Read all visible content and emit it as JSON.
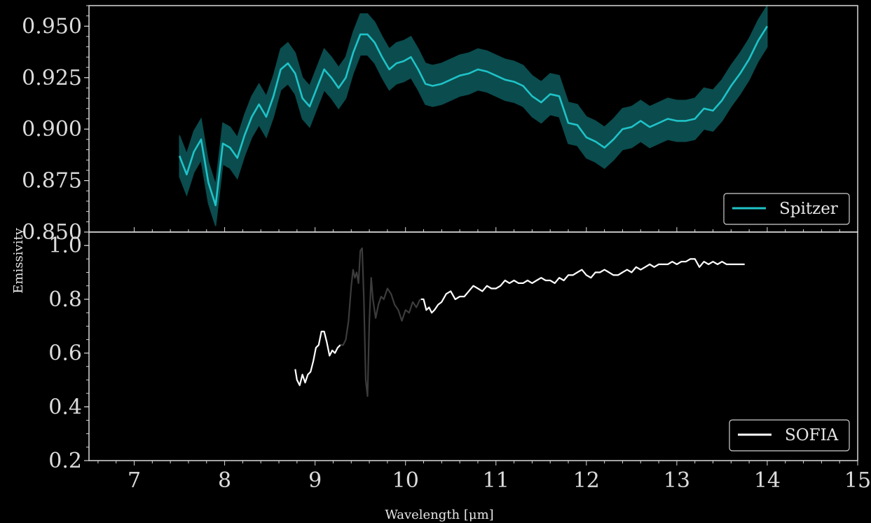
{
  "colors": {
    "background": "#000000",
    "axes": "#d9d9d9",
    "spitzer_line": "#1fc3c8",
    "spitzer_band": "#0d5a5c",
    "sofia_line": "#ffffff",
    "sofia_faded": "#3c3c3c"
  },
  "chart_data": [
    {
      "type": "line",
      "panel": "top",
      "legend": {
        "labels": [
          "Spitzer"
        ],
        "placement": "lower right"
      },
      "xlim": [
        6.5,
        15
      ],
      "ylim": [
        0.85,
        0.96
      ],
      "yticks": [
        0.85,
        0.875,
        0.9,
        0.925,
        0.95
      ],
      "ytick_labels": [
        "0.850",
        "0.875",
        "0.900",
        "0.925",
        "0.950"
      ],
      "series": [
        {
          "name": "Spitzer",
          "uncertainty_band": 0.01,
          "x": [
            7.5,
            7.58,
            7.66,
            7.74,
            7.82,
            7.9,
            7.98,
            8.06,
            8.14,
            8.22,
            8.3,
            8.38,
            8.46,
            8.54,
            8.62,
            8.7,
            8.78,
            8.86,
            8.94,
            9.02,
            9.1,
            9.18,
            9.26,
            9.34,
            9.42,
            9.5,
            9.58,
            9.66,
            9.74,
            9.82,
            9.9,
            9.98,
            10.06,
            10.14,
            10.22,
            10.3,
            10.4,
            10.5,
            10.6,
            10.7,
            10.8,
            10.9,
            11.0,
            11.1,
            11.2,
            11.3,
            11.4,
            11.5,
            11.6,
            11.7,
            11.8,
            11.9,
            12.0,
            12.1,
            12.2,
            12.3,
            12.4,
            12.5,
            12.6,
            12.7,
            12.8,
            12.9,
            13.0,
            13.1,
            13.2,
            13.3,
            13.4,
            13.5,
            13.6,
            13.7,
            13.8,
            13.9,
            14.0
          ],
          "y": [
            0.887,
            0.878,
            0.889,
            0.895,
            0.874,
            0.863,
            0.893,
            0.891,
            0.886,
            0.897,
            0.906,
            0.912,
            0.906,
            0.916,
            0.929,
            0.932,
            0.927,
            0.915,
            0.911,
            0.92,
            0.929,
            0.925,
            0.92,
            0.925,
            0.937,
            0.946,
            0.946,
            0.942,
            0.935,
            0.929,
            0.932,
            0.933,
            0.935,
            0.929,
            0.922,
            0.921,
            0.922,
            0.924,
            0.926,
            0.927,
            0.929,
            0.928,
            0.926,
            0.924,
            0.923,
            0.921,
            0.916,
            0.913,
            0.917,
            0.916,
            0.903,
            0.902,
            0.896,
            0.894,
            0.891,
            0.895,
            0.9,
            0.901,
            0.904,
            0.901,
            0.903,
            0.905,
            0.904,
            0.904,
            0.905,
            0.91,
            0.909,
            0.914,
            0.921,
            0.927,
            0.934,
            0.943,
            0.95
          ]
        }
      ]
    },
    {
      "type": "line",
      "panel": "bottom",
      "legend": {
        "labels": [
          "SOFIA"
        ],
        "placement": "lower right"
      },
      "xlabel": "Wavelength [μm]",
      "ylabel": "Emissivity",
      "xlim": [
        6.5,
        15
      ],
      "ylim": [
        0.2,
        1.05
      ],
      "xticks": [
        7,
        8,
        9,
        10,
        11,
        12,
        13,
        14,
        15
      ],
      "yticks": [
        0.2,
        0.4,
        0.6,
        0.8,
        1.0
      ],
      "ytick_labels": [
        "0.2",
        "0.4",
        "0.6",
        "0.8",
        "1.0"
      ],
      "series": [
        {
          "name": "SOFIA",
          "segments": [
            {
              "style": "solid",
              "x": [
                8.78,
                8.8,
                8.83,
                8.86,
                8.89,
                8.92,
                8.95,
                8.98,
                9.01,
                9.04,
                9.07,
                9.1,
                9.13,
                9.16,
                9.19,
                9.22,
                9.25,
                9.28
              ],
              "y": [
                0.54,
                0.5,
                0.48,
                0.52,
                0.49,
                0.52,
                0.53,
                0.57,
                0.62,
                0.63,
                0.68,
                0.68,
                0.64,
                0.59,
                0.61,
                0.6,
                0.62,
                0.63
              ]
            },
            {
              "style": "faded",
              "x": [
                9.28,
                9.31,
                9.34,
                9.37,
                9.4,
                9.42,
                9.44,
                9.46,
                9.48,
                9.5,
                9.52,
                9.54,
                9.56,
                9.58,
                9.6,
                9.62,
                9.64,
                9.67,
                9.7,
                9.73,
                9.76,
                9.8,
                9.84,
                9.88,
                9.92,
                9.96,
                10.0,
                10.04,
                10.08,
                10.12,
                10.16
              ],
              "y": [
                0.63,
                0.63,
                0.65,
                0.72,
                0.85,
                0.91,
                0.88,
                0.9,
                0.86,
                0.98,
                0.99,
                0.8,
                0.5,
                0.44,
                0.72,
                0.88,
                0.8,
                0.73,
                0.78,
                0.81,
                0.8,
                0.84,
                0.82,
                0.78,
                0.76,
                0.72,
                0.76,
                0.75,
                0.79,
                0.77,
                0.8
              ]
            },
            {
              "style": "solid",
              "x": [
                10.17,
                10.2,
                10.23,
                10.26,
                10.29,
                10.32,
                10.36,
                10.4,
                10.45,
                10.5,
                10.55,
                10.6,
                10.65,
                10.7,
                10.75,
                10.8,
                10.85,
                10.9,
                10.95,
                11.0,
                11.05,
                11.1,
                11.15,
                11.2,
                11.25,
                11.3,
                11.35,
                11.4,
                11.45,
                11.5,
                11.55,
                11.6,
                11.65,
                11.7,
                11.75,
                11.8,
                11.85,
                11.9,
                11.95,
                12.0,
                12.05,
                12.1,
                12.15,
                12.2,
                12.25,
                12.3,
                12.35,
                12.4,
                12.45,
                12.5,
                12.55,
                12.6,
                12.65,
                12.7,
                12.75,
                12.8,
                12.85,
                12.9,
                12.95,
                13.0,
                13.05,
                13.1,
                13.15,
                13.2,
                13.25,
                13.3,
                13.35,
                13.4,
                13.45,
                13.5,
                13.55,
                13.6,
                13.65,
                13.7,
                13.75
              ],
              "y": [
                0.8,
                0.8,
                0.76,
                0.77,
                0.75,
                0.76,
                0.78,
                0.79,
                0.82,
                0.83,
                0.8,
                0.81,
                0.81,
                0.83,
                0.85,
                0.84,
                0.83,
                0.85,
                0.84,
                0.84,
                0.85,
                0.87,
                0.86,
                0.87,
                0.86,
                0.86,
                0.87,
                0.86,
                0.87,
                0.88,
                0.87,
                0.87,
                0.86,
                0.88,
                0.87,
                0.89,
                0.89,
                0.9,
                0.91,
                0.89,
                0.88,
                0.9,
                0.9,
                0.91,
                0.9,
                0.89,
                0.89,
                0.9,
                0.91,
                0.9,
                0.92,
                0.91,
                0.92,
                0.93,
                0.92,
                0.93,
                0.93,
                0.93,
                0.94,
                0.93,
                0.94,
                0.94,
                0.95,
                0.95,
                0.92,
                0.94,
                0.93,
                0.94,
                0.93,
                0.94,
                0.93,
                0.93,
                0.93,
                0.93,
                0.93
              ]
            }
          ]
        }
      ]
    }
  ]
}
